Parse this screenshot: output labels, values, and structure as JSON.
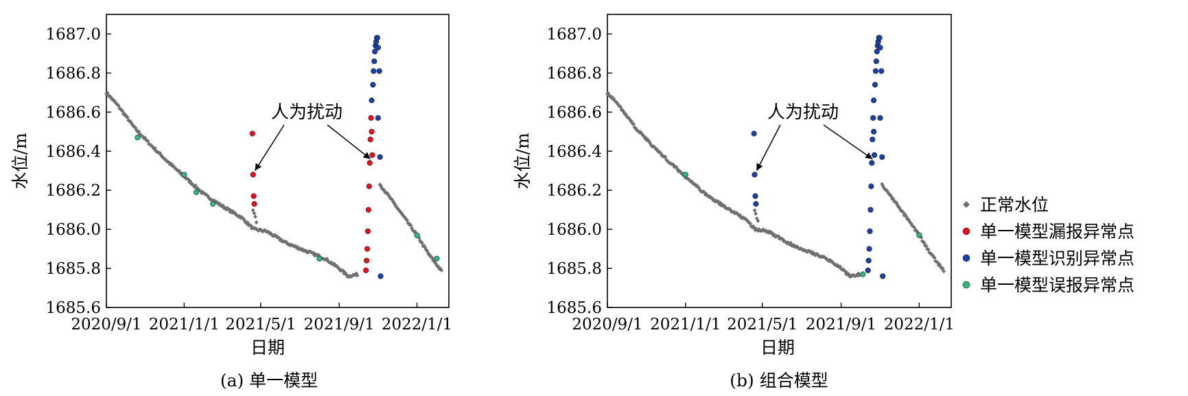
{
  "figure": {
    "caption_a": "(a) 单一模型",
    "caption_b": "(b) 组合模型"
  },
  "legend": [
    {
      "key": "normal",
      "label": "正常水位",
      "marker": "diamond",
      "color": "#707070"
    },
    {
      "key": "missed",
      "label": "单一模型漏报异常点",
      "marker": "circle",
      "color": "#e8101c"
    },
    {
      "key": "detected",
      "label": "单一模型识别异常点",
      "marker": "circle",
      "color": "#1a3fa8"
    },
    {
      "key": "false_alarm",
      "label": "单一模型误报异常点",
      "marker": "circle",
      "color": "#2fb87a"
    }
  ],
  "chart_data": [
    {
      "type": "scatter",
      "panel": "a",
      "xlabel": "日期",
      "ylabel": "水位/m",
      "x_ticks": [
        "2020/9/1",
        "2021/1/1",
        "2021/5/1",
        "2021/9/1",
        "2022/1/1"
      ],
      "y_ticks": [
        "1685.6",
        "1685.8",
        "1686.0",
        "1686.2",
        "1686.4",
        "1686.6",
        "1686.8",
        "1687.0"
      ],
      "xlim": [
        "2020-09-01",
        "2022-02-20"
      ],
      "ylim": [
        1685.6,
        1687.1
      ],
      "annotation": "人为扰动",
      "annotation_targets": [
        {
          "x": "2021-04-22",
          "y": 1686.3
        },
        {
          "x": "2021-10-20",
          "y": 1686.36
        }
      ],
      "normal_segments": [
        {
          "x": [
            "2020-09-01",
            "2020-09-20",
            "2020-10-15",
            "2020-11-10",
            "2020-12-05",
            "2021-01-01",
            "2021-02-01",
            "2021-03-01",
            "2021-04-01",
            "2021-04-20",
            "2021-05-10",
            "2021-06-10",
            "2021-07-10",
            "2021-08-10",
            "2021-09-01",
            "2021-09-15",
            "2021-10-01"
          ],
          "y": [
            1686.7,
            1686.63,
            1686.52,
            1686.43,
            1686.35,
            1686.27,
            1686.18,
            1686.12,
            1686.06,
            1686.0,
            1685.99,
            1685.93,
            1685.89,
            1685.85,
            1685.8,
            1685.76,
            1685.77
          ]
        },
        {
          "x": [
            "2021-11-04",
            "2021-11-20",
            "2021-12-10",
            "2022-01-01",
            "2022-01-20",
            "2022-02-10"
          ],
          "y": [
            1686.23,
            1686.16,
            1686.07,
            1685.97,
            1685.87,
            1685.78
          ]
        },
        {
          "x": [
            "2021-04-19",
            "2021-04-26"
          ],
          "y": [
            1686.1,
            1686.02
          ]
        }
      ],
      "series": [
        {
          "key": "missed",
          "x": [
            "2021-04-18",
            "2021-04-19",
            "2021-04-20",
            "2021-04-21",
            "2021-10-13",
            "2021-10-14",
            "2021-10-15",
            "2021-10-16",
            "2021-10-17",
            "2021-10-18",
            "2021-10-19",
            "2021-10-20",
            "2021-10-21",
            "2021-10-22",
            "2021-10-23"
          ],
          "y": [
            1686.49,
            1686.28,
            1686.17,
            1686.13,
            1685.79,
            1685.84,
            1685.9,
            1685.99,
            1686.1,
            1686.22,
            1686.34,
            1686.46,
            1686.57,
            1686.5,
            1686.38
          ]
        },
        {
          "key": "detected",
          "x": [
            "2021-10-22",
            "2021-10-24",
            "2021-10-25",
            "2021-10-26",
            "2021-10-27",
            "2021-10-28",
            "2021-10-29",
            "2021-10-30",
            "2021-10-31",
            "2021-11-01",
            "2021-11-01",
            "2021-11-03",
            "2021-11-04",
            "2021-11-05"
          ],
          "y": [
            1686.66,
            1686.74,
            1686.81,
            1686.86,
            1686.91,
            1686.94,
            1686.96,
            1686.98,
            1686.98,
            1686.93,
            1686.57,
            1686.81,
            1686.37,
            1685.76
          ]
        },
        {
          "key": "false_alarm",
          "x": [
            "2020-10-20",
            "2021-01-01",
            "2021-01-20",
            "2021-02-15",
            "2021-08-01",
            "2022-01-01",
            "2022-02-01"
          ],
          "y": [
            1686.47,
            1686.28,
            1686.19,
            1686.13,
            1685.85,
            1685.97,
            1685.85
          ]
        }
      ]
    },
    {
      "type": "scatter",
      "panel": "b",
      "xlabel": "日期",
      "ylabel": "水位/m",
      "x_ticks": [
        "2020/9/1",
        "2021/1/1",
        "2021/5/1",
        "2021/9/1",
        "2022/1/1"
      ],
      "y_ticks": [
        "1685.6",
        "1685.8",
        "1686.0",
        "1686.2",
        "1686.4",
        "1686.6",
        "1686.8",
        "1687.0"
      ],
      "xlim": [
        "2020-09-01",
        "2022-02-20"
      ],
      "ylim": [
        1685.6,
        1687.1
      ],
      "annotation": "人为扰动",
      "annotation_targets": [
        {
          "x": "2021-04-22",
          "y": 1686.3
        },
        {
          "x": "2021-10-20",
          "y": 1686.36
        }
      ],
      "normal_segments": [
        {
          "x": [
            "2020-09-01",
            "2020-09-20",
            "2020-10-15",
            "2020-11-10",
            "2020-12-05",
            "2021-01-01",
            "2021-02-01",
            "2021-03-01",
            "2021-04-01",
            "2021-04-20",
            "2021-05-10",
            "2021-06-10",
            "2021-07-10",
            "2021-08-10",
            "2021-09-01",
            "2021-09-15",
            "2021-10-01"
          ],
          "y": [
            1686.7,
            1686.63,
            1686.52,
            1686.43,
            1686.35,
            1686.27,
            1686.18,
            1686.12,
            1686.06,
            1686.0,
            1685.99,
            1685.93,
            1685.89,
            1685.85,
            1685.8,
            1685.76,
            1685.77
          ]
        },
        {
          "x": [
            "2021-11-04",
            "2021-11-20",
            "2021-12-10",
            "2022-01-01",
            "2022-01-20",
            "2022-02-10"
          ],
          "y": [
            1686.23,
            1686.16,
            1686.07,
            1685.97,
            1685.87,
            1685.78
          ]
        },
        {
          "x": [
            "2021-04-19",
            "2021-04-26"
          ],
          "y": [
            1686.1,
            1686.02
          ]
        }
      ],
      "series": [
        {
          "key": "detected",
          "x": [
            "2021-04-18",
            "2021-04-19",
            "2021-04-20",
            "2021-04-21",
            "2021-10-13",
            "2021-10-14",
            "2021-10-15",
            "2021-10-16",
            "2021-10-17",
            "2021-10-18",
            "2021-10-19",
            "2021-10-20",
            "2021-10-21",
            "2021-10-22",
            "2021-10-23",
            "2021-10-22",
            "2021-10-24",
            "2021-10-25",
            "2021-10-26",
            "2021-10-27",
            "2021-10-28",
            "2021-10-29",
            "2021-10-30",
            "2021-10-31",
            "2021-11-01",
            "2021-11-01",
            "2021-11-03",
            "2021-11-04",
            "2021-11-05"
          ],
          "y": [
            1686.49,
            1686.28,
            1686.17,
            1686.13,
            1685.79,
            1685.84,
            1685.9,
            1685.99,
            1686.1,
            1686.22,
            1686.34,
            1686.46,
            1686.57,
            1686.5,
            1686.38,
            1686.66,
            1686.74,
            1686.81,
            1686.86,
            1686.91,
            1686.94,
            1686.96,
            1686.98,
            1686.98,
            1686.93,
            1686.57,
            1686.81,
            1686.37,
            1685.76
          ]
        },
        {
          "key": "false_alarm",
          "x": [
            "2021-01-01",
            "2021-10-05",
            "2022-01-01"
          ],
          "y": [
            1686.28,
            1685.77,
            1685.97
          ]
        }
      ]
    }
  ]
}
